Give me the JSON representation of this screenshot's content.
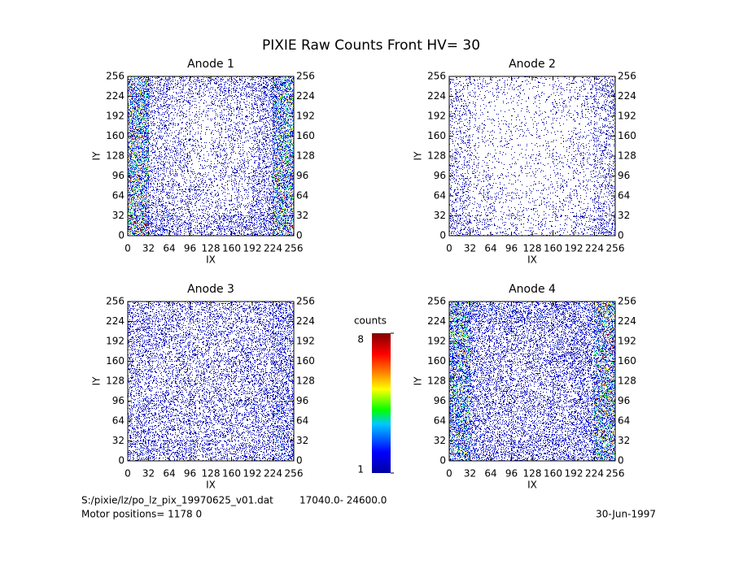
{
  "title": "PIXIE Raw Counts Front HV= 30",
  "chart_data": [
    {
      "type": "heatmap",
      "title": "Anode 1",
      "xlabel": "IX",
      "ylabel": "IY",
      "xlim": [
        0,
        256
      ],
      "ylim": [
        0,
        256
      ],
      "xticks": [
        0,
        32,
        64,
        96,
        128,
        160,
        192,
        224,
        256
      ],
      "yticks": [
        0,
        32,
        64,
        96,
        128,
        160,
        192,
        224,
        256
      ],
      "values": [
        [
          2.5,
          0.6,
          0.4,
          0.4,
          0.5,
          0.5,
          0.7,
          2.2
        ],
        [
          2.8,
          0.5,
          0.3,
          0.2,
          0.3,
          0.3,
          0.6,
          2.5
        ],
        [
          2.6,
          0.4,
          0.3,
          0.2,
          0.3,
          0.3,
          0.5,
          2.4
        ],
        [
          2.7,
          0.4,
          0.4,
          0.2,
          0.3,
          0.3,
          0.5,
          2.6
        ],
        [
          2.8,
          0.4,
          0.4,
          0.2,
          0.3,
          0.3,
          0.5,
          2.7
        ],
        [
          2.9,
          0.5,
          0.3,
          0.3,
          0.2,
          0.3,
          0.6,
          2.8
        ],
        [
          3.0,
          0.6,
          0.4,
          0.3,
          0.3,
          0.4,
          0.7,
          2.9
        ],
        [
          3.2,
          0.9,
          0.6,
          0.5,
          0.6,
          0.6,
          0.9,
          3.0
        ]
      ]
    },
    {
      "type": "heatmap",
      "title": "Anode 2",
      "xlabel": "IX",
      "ylabel": "IY",
      "xlim": [
        0,
        256
      ],
      "ylim": [
        0,
        256
      ],
      "xticks": [
        0,
        32,
        64,
        96,
        128,
        160,
        192,
        224,
        256
      ],
      "yticks": [
        0,
        32,
        64,
        96,
        128,
        160,
        192,
        224,
        256
      ],
      "values": [
        [
          0.3,
          0.2,
          0.15,
          0.15,
          0.15,
          0.2,
          0.2,
          0.6
        ],
        [
          0.3,
          0.15,
          0.1,
          0.1,
          0.1,
          0.15,
          0.2,
          0.4
        ],
        [
          0.25,
          0.15,
          0.1,
          0.1,
          0.1,
          0.1,
          0.15,
          0.3
        ],
        [
          0.3,
          0.15,
          0.1,
          0.1,
          0.1,
          0.15,
          0.2,
          0.3
        ],
        [
          0.35,
          0.15,
          0.1,
          0.1,
          0.1,
          0.15,
          0.2,
          0.35
        ],
        [
          0.35,
          0.2,
          0.15,
          0.1,
          0.1,
          0.15,
          0.2,
          0.35
        ],
        [
          0.4,
          0.2,
          0.15,
          0.15,
          0.15,
          0.15,
          0.2,
          0.4
        ],
        [
          0.5,
          0.3,
          0.2,
          0.2,
          0.2,
          0.2,
          0.3,
          0.6
        ]
      ]
    },
    {
      "type": "heatmap",
      "title": "Anode 3",
      "xlabel": "IX",
      "ylabel": "IY",
      "xlim": [
        0,
        256
      ],
      "ylim": [
        0,
        256
      ],
      "xticks": [
        0,
        32,
        64,
        96,
        128,
        160,
        192,
        224,
        256
      ],
      "yticks": [
        0,
        32,
        64,
        96,
        128,
        160,
        192,
        224,
        256
      ],
      "values": [
        [
          0.6,
          0.5,
          0.5,
          0.5,
          0.5,
          0.5,
          0.6,
          0.9
        ],
        [
          0.6,
          0.5,
          0.45,
          0.45,
          0.45,
          0.5,
          0.6,
          0.9
        ],
        [
          0.55,
          0.5,
          0.45,
          0.45,
          0.45,
          0.5,
          0.55,
          0.8
        ],
        [
          0.55,
          0.5,
          0.45,
          0.45,
          0.45,
          0.5,
          0.55,
          0.8
        ],
        [
          0.55,
          0.5,
          0.45,
          0.45,
          0.45,
          0.5,
          0.55,
          0.8
        ],
        [
          0.6,
          0.5,
          0.45,
          0.45,
          0.45,
          0.5,
          0.6,
          0.9
        ],
        [
          0.6,
          0.5,
          0.5,
          0.5,
          0.5,
          0.5,
          0.6,
          0.9
        ],
        [
          0.7,
          0.6,
          0.55,
          0.55,
          0.55,
          0.55,
          0.6,
          1.0
        ]
      ]
    },
    {
      "type": "heatmap",
      "title": "Anode 4",
      "xlabel": "IX",
      "ylabel": "IY",
      "xlim": [
        0,
        256
      ],
      "ylim": [
        0,
        256
      ],
      "xticks": [
        0,
        32,
        64,
        96,
        128,
        160,
        192,
        224,
        256
      ],
      "yticks": [
        0,
        32,
        64,
        96,
        128,
        160,
        192,
        224,
        256
      ],
      "values": [
        [
          2.6,
          1.0,
          0.8,
          0.8,
          0.8,
          0.8,
          1.0,
          2.8
        ],
        [
          2.4,
          0.8,
          0.6,
          0.6,
          0.6,
          0.7,
          0.9,
          2.6
        ],
        [
          2.3,
          0.7,
          0.6,
          0.5,
          0.5,
          0.6,
          0.8,
          2.7
        ],
        [
          2.3,
          0.7,
          0.6,
          0.5,
          0.5,
          0.6,
          0.8,
          2.9
        ],
        [
          2.3,
          0.7,
          0.6,
          0.5,
          0.5,
          0.6,
          0.8,
          2.8
        ],
        [
          2.3,
          0.7,
          0.6,
          0.6,
          0.6,
          0.6,
          0.8,
          2.7
        ],
        [
          2.3,
          0.8,
          0.6,
          0.6,
          0.6,
          0.7,
          0.9,
          2.7
        ],
        [
          2.4,
          0.9,
          0.7,
          0.7,
          0.7,
          0.7,
          0.9,
          2.6
        ]
      ]
    }
  ],
  "colorbar": {
    "label": "counts",
    "lim": [
      1,
      8
    ],
    "ticks": [
      1,
      8
    ]
  },
  "footer": {
    "file": "S:/pixie/lz/po_lz_pix_19970625_v01.dat",
    "range": "17040.0- 24600.0",
    "motor": "Motor positions= 1178 0",
    "date": "30-Jun-1997"
  }
}
